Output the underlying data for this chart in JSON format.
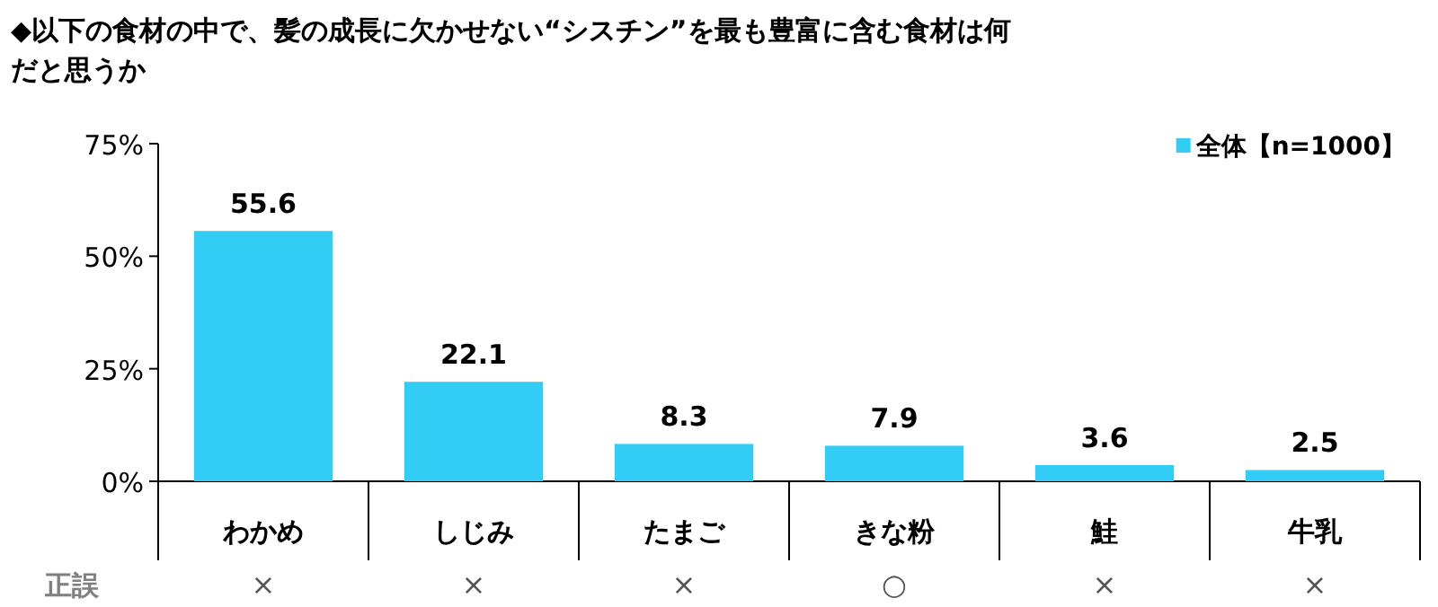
{
  "chart_data": {
    "type": "bar",
    "title": "◆以下の食材の中で、髪の成長に欠かせない“シスチン”を最も豊富に含む食材は何だと思うか",
    "categories": [
      "わかめ",
      "しじみ",
      "たまご",
      "きな粉",
      "鮭",
      "牛乳"
    ],
    "series": [
      {
        "name": "全体【n=1000】",
        "color": "#33ccf5",
        "values": [
          55.6,
          22.1,
          8.3,
          7.9,
          3.6,
          2.5
        ]
      }
    ],
    "ylim": [
      0,
      75
    ],
    "yticks": [
      {
        "value": 0,
        "label": "0%"
      },
      {
        "value": 25,
        "label": "25%"
      },
      {
        "value": 50,
        "label": "50%"
      },
      {
        "value": 75,
        "label": "75%"
      }
    ],
    "data_labels": true,
    "legend": "top right",
    "grid": false,
    "annotations": [
      "正誤",
      "×",
      "×",
      "×",
      "○",
      "×",
      "×"
    ]
  }
}
